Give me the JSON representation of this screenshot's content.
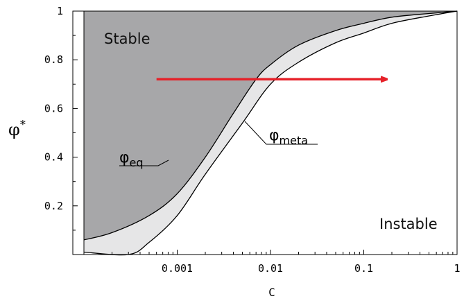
{
  "chart_data": {
    "type": "area",
    "title": "",
    "xlabel": "C",
    "ylabel": {
      "base": "φ",
      "sup": "*"
    },
    "xscale": "log",
    "xlim": [
      0.0001,
      1
    ],
    "ylim": [
      0,
      1
    ],
    "xticks": [
      {
        "value": 0.001,
        "label": "0.001"
      },
      {
        "value": 0.01,
        "label": "0.01"
      },
      {
        "value": 0.1,
        "label": "0.1"
      },
      {
        "value": 1,
        "label": "1"
      }
    ],
    "yticks": [
      {
        "value": 0.2,
        "label": "0.2"
      },
      {
        "value": 0.4,
        "label": "0.4"
      },
      {
        "value": 0.6,
        "label": "0.6"
      },
      {
        "value": 0.8,
        "label": "0.8"
      },
      {
        "value": 1,
        "label": "1"
      }
    ],
    "series": [
      {
        "name": "φeq",
        "x": [
          0.0001,
          0.0002,
          0.0005,
          0.001,
          0.002,
          0.004,
          0.007,
          0.01,
          0.02,
          0.05,
          0.1,
          0.2,
          0.5,
          1
        ],
        "y": [
          0.06,
          0.09,
          0.16,
          0.25,
          0.4,
          0.58,
          0.72,
          0.78,
          0.86,
          0.92,
          0.95,
          0.975,
          0.99,
          1.0
        ]
      },
      {
        "name": "φmeta",
        "x": [
          0.0001,
          0.0003,
          0.0005,
          0.001,
          0.002,
          0.005,
          0.01,
          0.02,
          0.05,
          0.1,
          0.2,
          0.5,
          1
        ],
        "y": [
          0.01,
          0.0,
          0.05,
          0.16,
          0.33,
          0.54,
          0.7,
          0.79,
          0.87,
          0.91,
          0.95,
          0.98,
          1.0
        ]
      }
    ],
    "regions": [
      {
        "label": "Stable",
        "color": "#a7a7a9"
      },
      {
        "label": "Instable",
        "color": "#ffffff"
      }
    ],
    "band_color": "#e6e6e7",
    "arrow": {
      "from": [
        0.0006,
        0.72
      ],
      "to": [
        0.2,
        0.72
      ],
      "color": "#e62129"
    },
    "curve_labels": [
      {
        "base": "φ",
        "sub": "eq",
        "series": "φeq"
      },
      {
        "base": "φ",
        "sub": "meta",
        "series": "φmeta"
      }
    ]
  }
}
